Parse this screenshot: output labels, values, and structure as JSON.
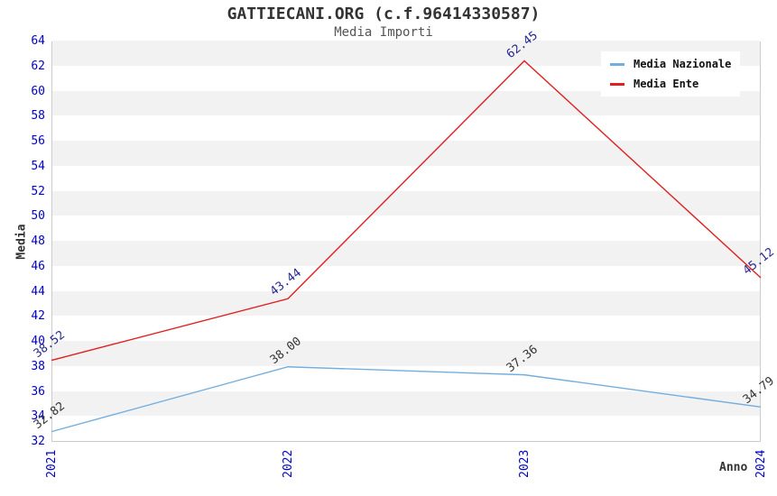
{
  "header": {
    "title": "GATTIECANI.ORG (c.f.96414330587)",
    "subtitle": "Media Importi"
  },
  "chart_data": {
    "type": "line",
    "x": [
      "2021",
      "2022",
      "2023",
      "2024"
    ],
    "series": [
      {
        "name": "Media Nazionale",
        "color": "#74aede",
        "label_color": "#333333",
        "values": [
          32.82,
          38.0,
          37.36,
          34.79
        ],
        "labels": [
          "32.82",
          "38.00",
          "37.36",
          "34.79"
        ]
      },
      {
        "name": "Media Ente",
        "color": "#e01f1f",
        "label_color": "#262690",
        "values": [
          38.52,
          43.44,
          62.45,
          45.12
        ],
        "labels": [
          "38.52",
          "43.44",
          "62.45",
          "45.12"
        ]
      }
    ],
    "xlabel": "Anno",
    "ylabel": "Media",
    "ylim": [
      32,
      64
    ],
    "ytick_step": 2,
    "y_ticks": [
      "32",
      "34",
      "36",
      "38",
      "40",
      "42",
      "44",
      "46",
      "48",
      "50",
      "52",
      "54",
      "56",
      "58",
      "60",
      "62",
      "64"
    ],
    "grid": "alternating-horizontal-bands",
    "legend_position": "top-right"
  },
  "style": {
    "band_white": "#ffffff",
    "band_gray": "#f2f2f2",
    "axis_border": "#cccccc",
    "tick_color": "#0000cd",
    "title_color": "#333333",
    "subtitle_color": "#555555",
    "legend_bg": "#ffffff",
    "legend_text": "#111111"
  }
}
